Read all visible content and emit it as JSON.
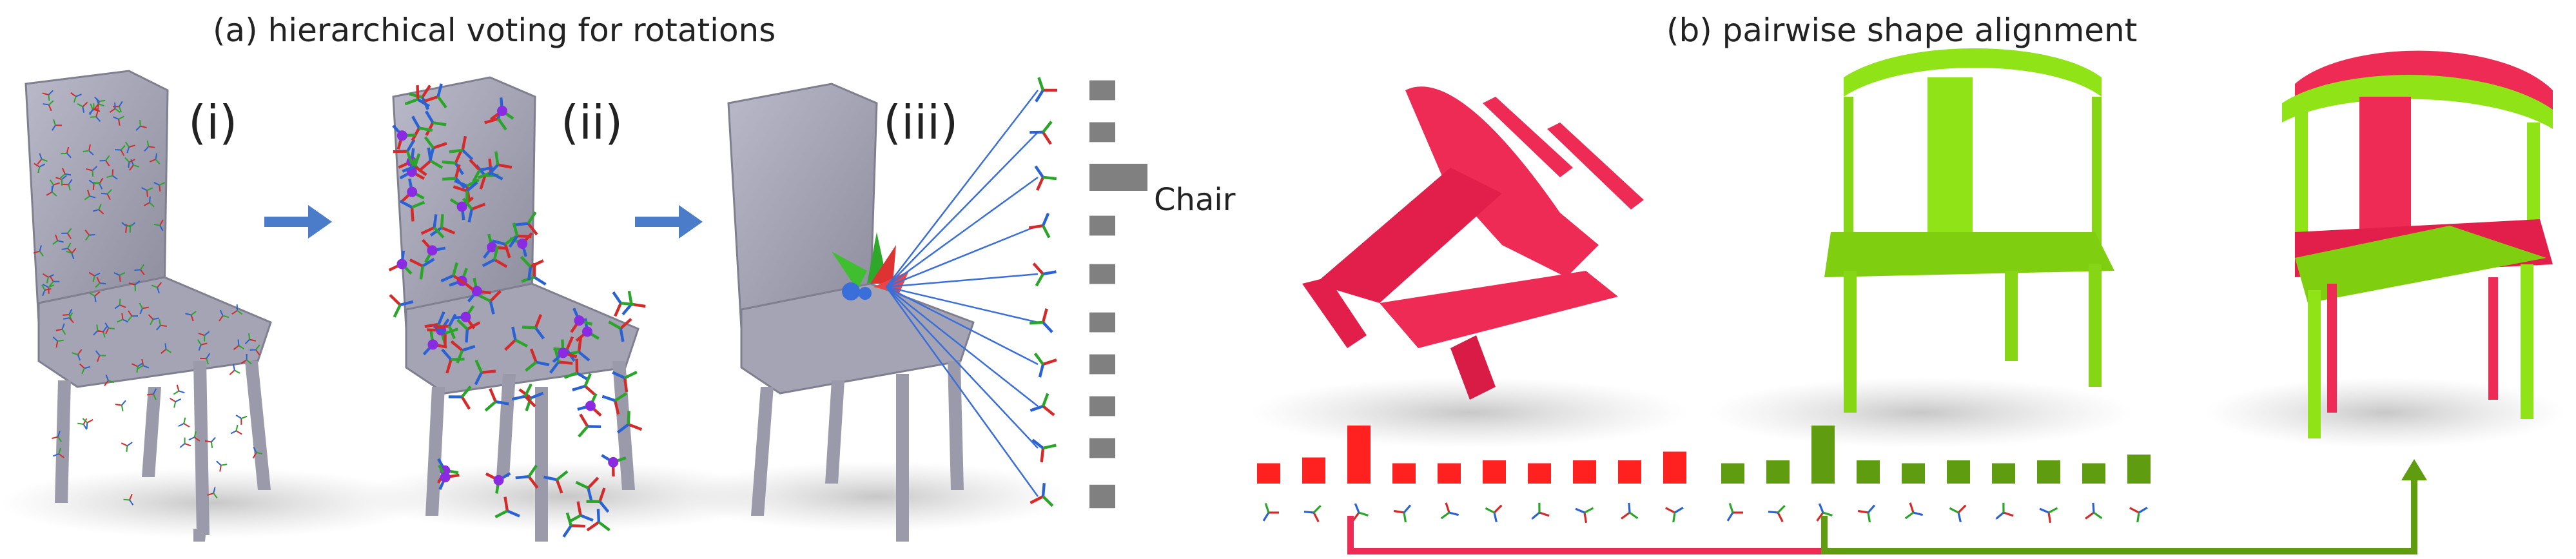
{
  "panel_a": {
    "title": "(a) hierarchical voting for rotations",
    "steps": [
      "(i)",
      "(ii)",
      "(iii)"
    ],
    "class_label": "Chair",
    "vote_bars": [
      0.22,
      0.22,
      0.3,
      0.22,
      0.22,
      0.22,
      0.22,
      0.22,
      0.22,
      0.26
    ]
  },
  "panel_b": {
    "title": "(b) pairwise shape alignment",
    "red_bars": [
      0.35,
      0.45,
      1.0,
      0.35,
      0.35,
      0.4,
      0.35,
      0.4,
      0.4,
      0.55
    ],
    "green_bars": [
      0.35,
      0.4,
      1.0,
      0.4,
      0.35,
      0.4,
      0.35,
      0.4,
      0.35,
      0.5
    ],
    "colors": {
      "red": "#ee2b55",
      "green": "#8fe316",
      "red_bar": "#ff2020",
      "green_bar": "#5f9c10",
      "arrow_blue": "#4a7cc9"
    }
  }
}
